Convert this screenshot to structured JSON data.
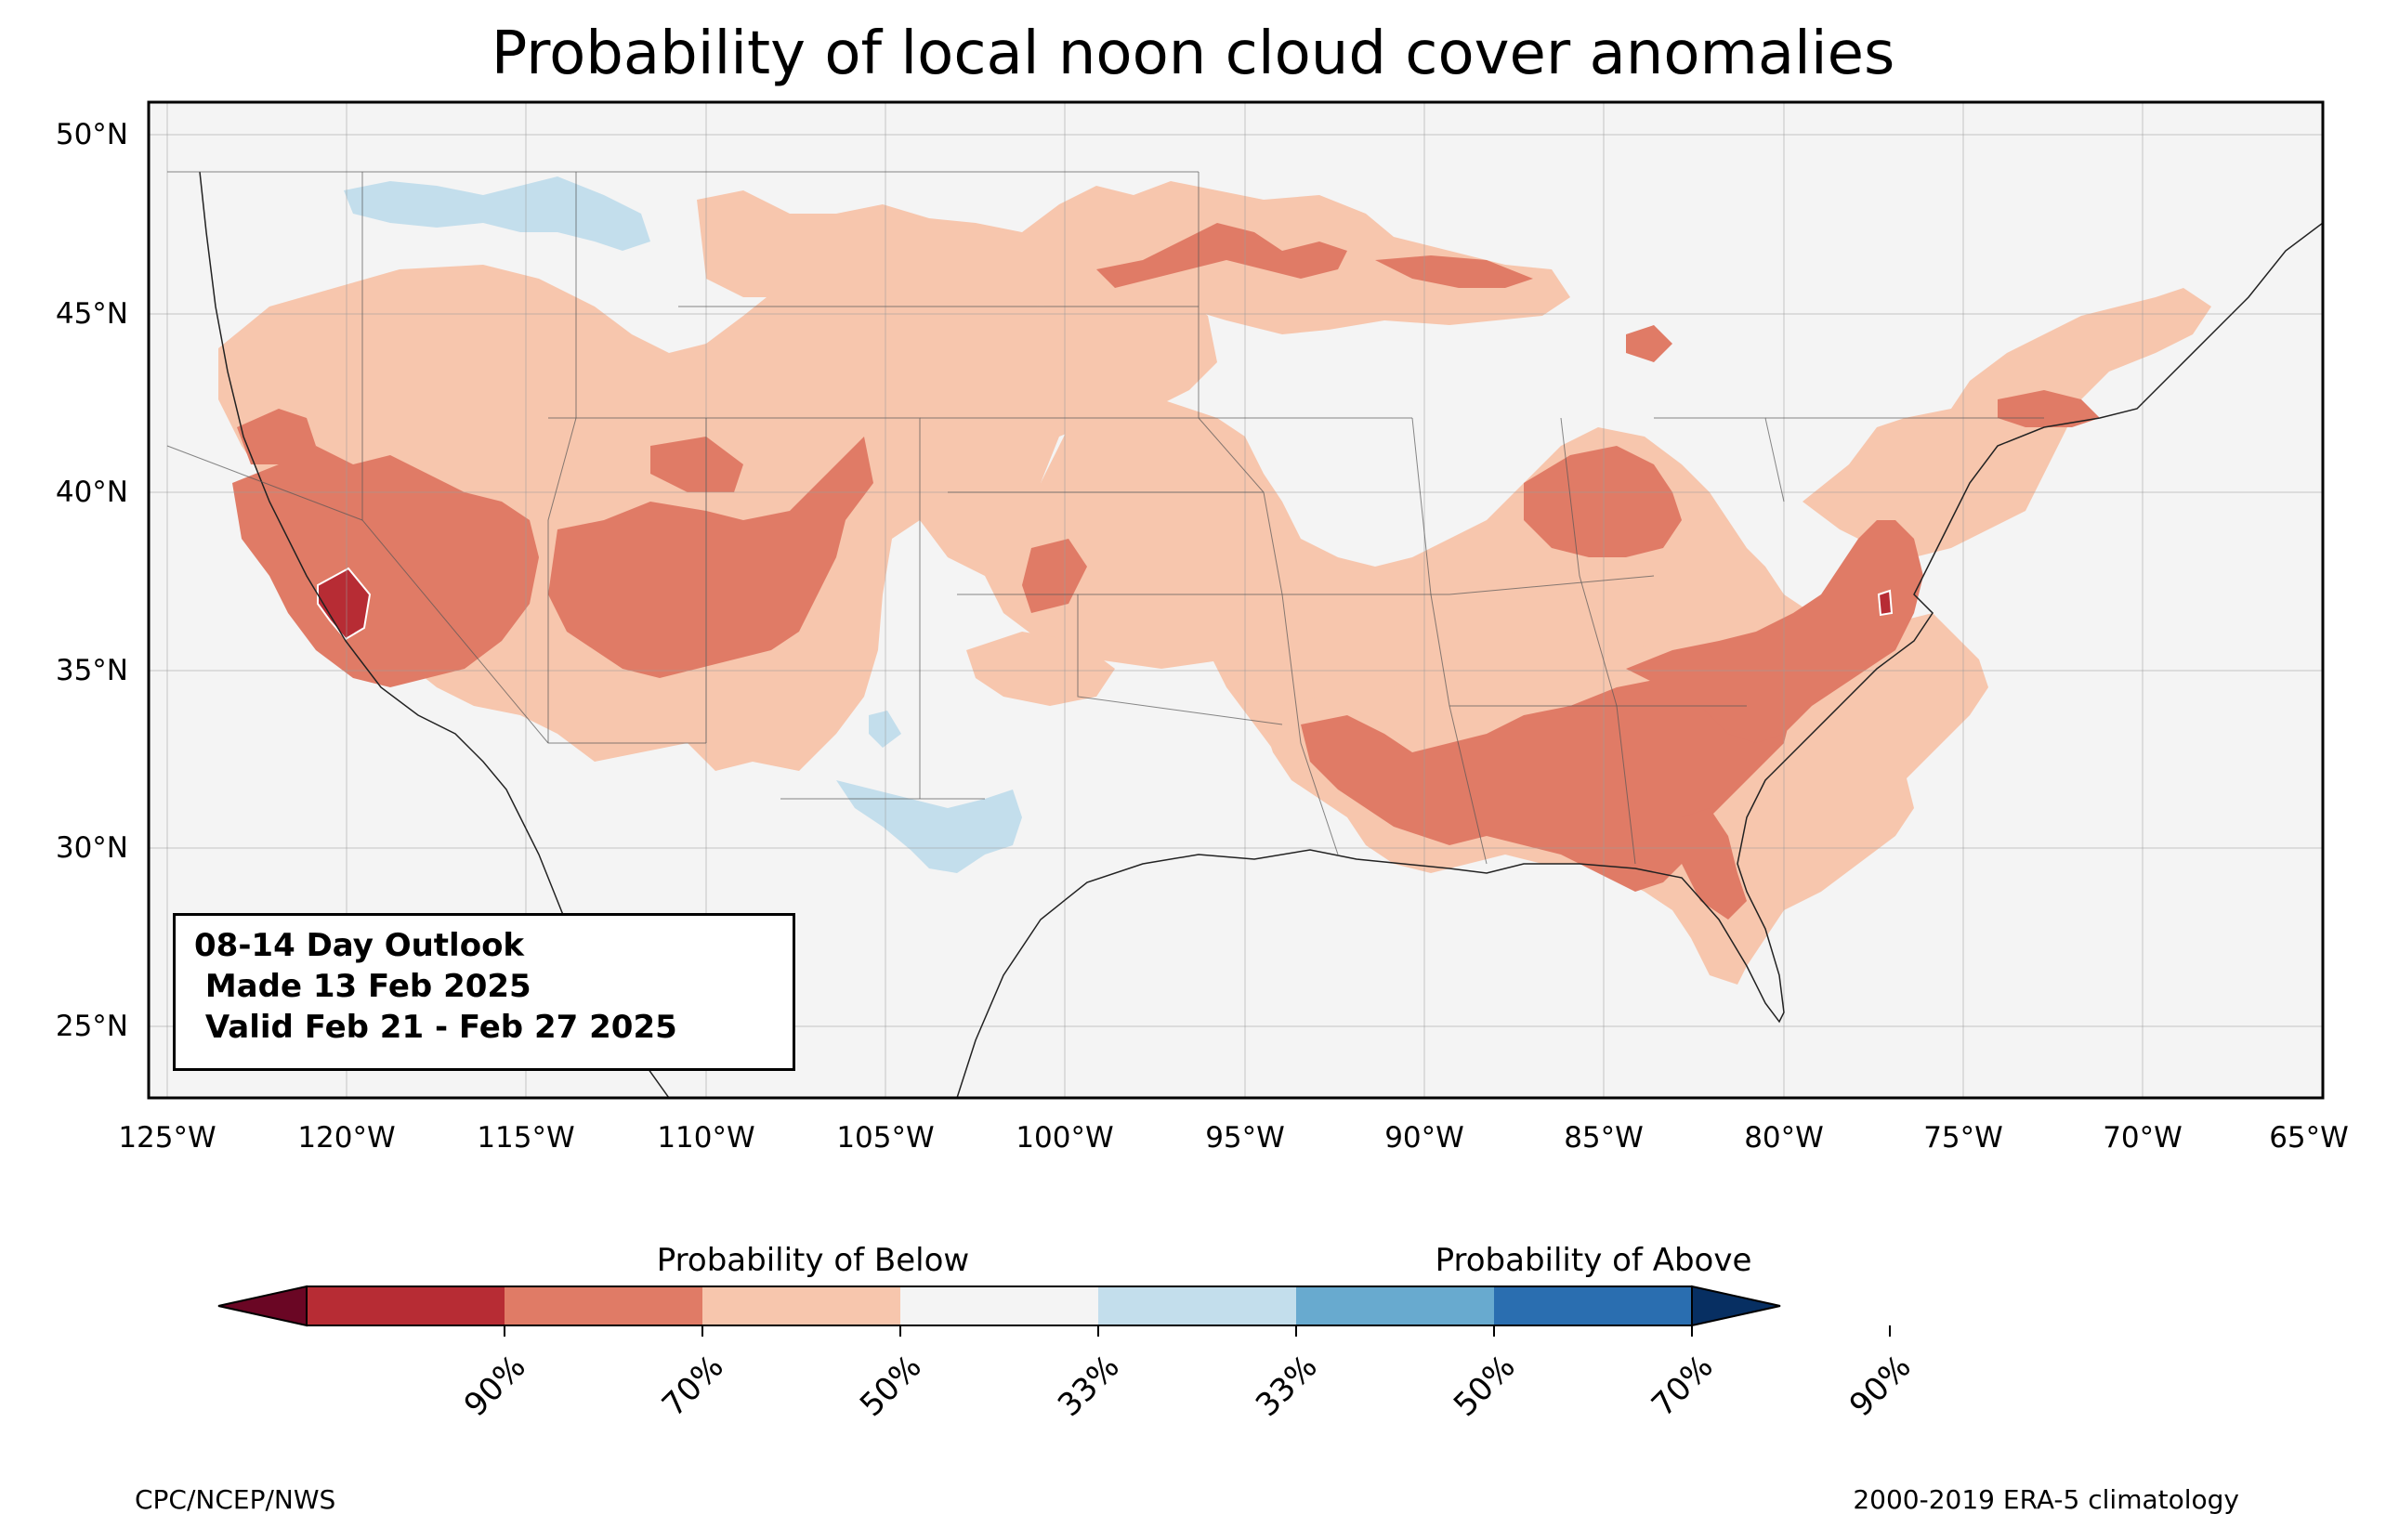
{
  "title": "Probability of local noon cloud cover anomalies",
  "map": {
    "extent": {
      "lon_min": -125.5,
      "lon_max": -65,
      "lat_min": 23,
      "lat_max": 51
    },
    "lat_labels": [
      "50°N",
      "45°N",
      "40°N",
      "35°N",
      "30°N",
      "25°N"
    ],
    "lon_labels": [
      "125°W",
      "120°W",
      "115°W",
      "110°W",
      "105°W",
      "100°W",
      "95°W",
      "90°W",
      "85°W",
      "80°W",
      "75°W",
      "70°W",
      "65°W"
    ],
    "background_color": "#f4f4f4",
    "grid": true,
    "regions": [
      {
        "category": "below-33",
        "color": "#f7c6ad",
        "area": "western US broad swath"
      },
      {
        "category": "below-33",
        "color": "#f7c6ad",
        "area": "northern plains and upper midwest"
      },
      {
        "category": "below-33",
        "color": "#f7c6ad",
        "area": "ohio valley, southeast and mid-atlantic"
      },
      {
        "category": "below-33",
        "color": "#f7c6ad",
        "area": "new england"
      },
      {
        "category": "below-50",
        "color": "#e07b66",
        "area": "california and great basin"
      },
      {
        "category": "below-50",
        "color": "#e07b66",
        "area": "utah and colorado plateau"
      },
      {
        "category": "below-50",
        "color": "#e07b66",
        "area": "lower mississippi valley and southeast"
      },
      {
        "category": "below-50",
        "color": "#e07b66",
        "area": "carolinas and virginia"
      },
      {
        "category": "below-50",
        "color": "#e07b66",
        "area": "ohio and kentucky"
      },
      {
        "category": "below-50",
        "color": "#e07b66",
        "area": "upper midwest"
      },
      {
        "category": "below-70",
        "color": "#b72c34",
        "area": "central california"
      },
      {
        "category": "above-33",
        "color": "#c3deec",
        "area": "northern rockies"
      },
      {
        "category": "above-33",
        "color": "#c3deec",
        "area": "west texas"
      }
    ]
  },
  "outlook_box": {
    "line1": "08-14 Day Outlook",
    "line2": " Made 13 Feb 2025",
    "line3": " Valid Feb 21 - Feb 27 2025"
  },
  "colorbar": {
    "below_label": "Probability of Below",
    "above_label": "Probability of Above",
    "colors": [
      "#6a0624",
      "#b72c34",
      "#e07b66",
      "#f7c6ad",
      "#f4f4f4",
      "#c3deec",
      "#68aacf",
      "#2a6eb0",
      "#072f62"
    ],
    "ticks": [
      "90%",
      "70%",
      "50%",
      "33%",
      "33%",
      "50%",
      "70%",
      "90%"
    ]
  },
  "footer": {
    "left": "CPC/NCEP/NWS",
    "right": "2000-2019 ERA-5 climatology"
  }
}
